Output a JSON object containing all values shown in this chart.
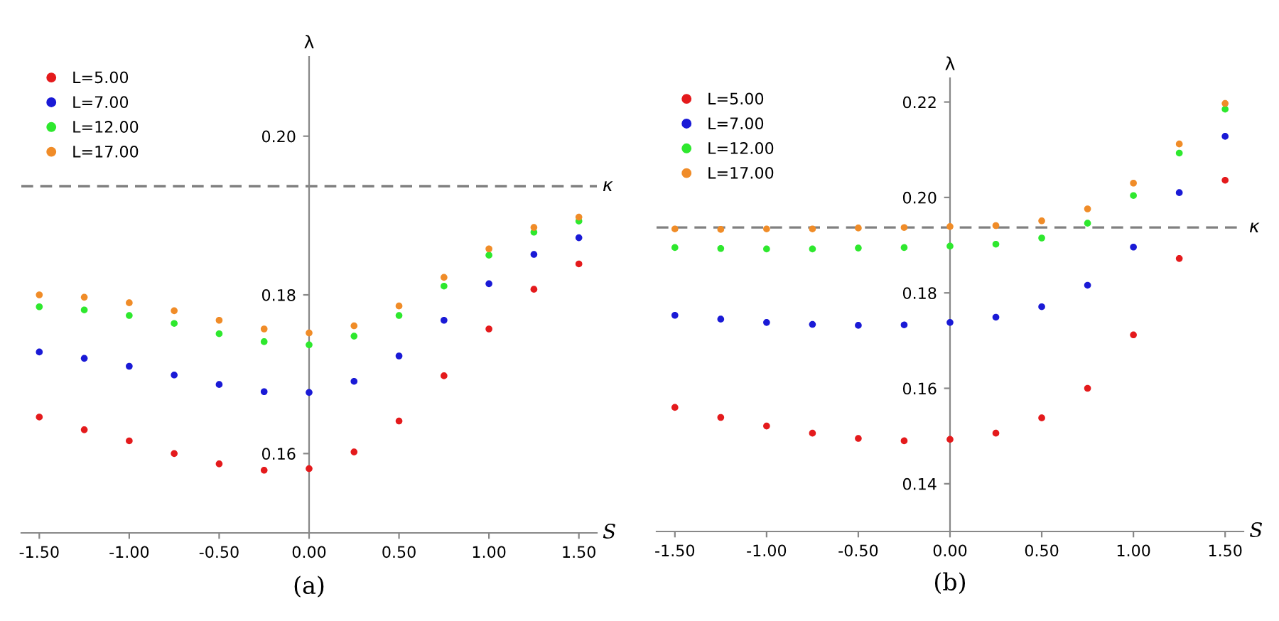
{
  "chart_data": [
    {
      "type": "scatter",
      "title": "(a)",
      "xlabel": "S",
      "ylabel": "λ",
      "legend": "top left",
      "grid": false,
      "marker": "circle",
      "x": [
        -1.5,
        -1.25,
        -1.0,
        -0.75,
        -0.5,
        -0.25,
        0.0,
        0.25,
        0.5,
        0.75,
        1.0,
        1.25,
        1.5
      ],
      "xlim": [
        -1.6,
        1.6
      ],
      "ylim": [
        0.15,
        0.21
      ],
      "xticks": [
        {
          "value": -1.5,
          "label": "-1.50"
        },
        {
          "value": -1.0,
          "label": "-1.00"
        },
        {
          "value": -0.5,
          "label": "-0.50"
        },
        {
          "value": 0.0,
          "label": "0.00"
        },
        {
          "value": 0.5,
          "label": "0.50"
        },
        {
          "value": 1.0,
          "label": "1.00"
        },
        {
          "value": 1.5,
          "label": "1.50"
        }
      ],
      "yticks": [
        {
          "value": 0.16,
          "label": "0.16"
        },
        {
          "value": 0.18,
          "label": "0.18"
        },
        {
          "value": 0.2,
          "label": "0.20"
        }
      ],
      "ref_lines": [
        {
          "axis": "y",
          "value": 0.1937,
          "label": "κ",
          "color": "#808080",
          "line_style": "dashed"
        }
      ],
      "series": [
        {
          "name": "L=5.00",
          "color": "#e41a1c",
          "values": [
            0.1646,
            0.163,
            0.1616,
            0.16,
            0.1587,
            0.1579,
            0.1581,
            0.1602,
            0.1641,
            0.1698,
            0.1757,
            0.1807,
            0.1839
          ]
        },
        {
          "name": "L=7.00",
          "color": "#1a1ad6",
          "values": [
            0.1728,
            0.172,
            0.171,
            0.1699,
            0.1687,
            0.1678,
            0.1677,
            0.1691,
            0.1723,
            0.1768,
            0.1814,
            0.1851,
            0.1872
          ]
        },
        {
          "name": "L=12.00",
          "color": "#2ee82e",
          "values": [
            0.1785,
            0.1781,
            0.1774,
            0.1764,
            0.1751,
            0.1741,
            0.1737,
            0.1748,
            0.1774,
            0.1811,
            0.185,
            0.1879,
            0.1893
          ]
        },
        {
          "name": "L=17.00",
          "color": "#f08c28",
          "values": [
            0.18,
            0.1797,
            0.179,
            0.178,
            0.1768,
            0.1757,
            0.1752,
            0.1761,
            0.1786,
            0.1822,
            0.1858,
            0.1885,
            0.1898
          ]
        }
      ]
    },
    {
      "type": "scatter",
      "title": "(b)",
      "xlabel": "S",
      "ylabel": "λ",
      "legend": "top left",
      "grid": false,
      "marker": "circle",
      "x": [
        -1.5,
        -1.25,
        -1.0,
        -0.75,
        -0.5,
        -0.25,
        0.0,
        0.25,
        0.5,
        0.75,
        1.0,
        1.25,
        1.5
      ],
      "xlim": [
        -1.6,
        1.6
      ],
      "ylim": [
        0.13,
        0.225
      ],
      "xticks": [
        {
          "value": -1.5,
          "label": "-1.50"
        },
        {
          "value": -1.0,
          "label": "-1.00"
        },
        {
          "value": -0.5,
          "label": "-0.50"
        },
        {
          "value": 0.0,
          "label": "0.00"
        },
        {
          "value": 0.5,
          "label": "0.50"
        },
        {
          "value": 1.0,
          "label": "1.00"
        },
        {
          "value": 1.5,
          "label": "1.50"
        }
      ],
      "yticks": [
        {
          "value": 0.14,
          "label": "0.14"
        },
        {
          "value": 0.16,
          "label": "0.16"
        },
        {
          "value": 0.18,
          "label": "0.18"
        },
        {
          "value": 0.2,
          "label": "0.20"
        },
        {
          "value": 0.22,
          "label": "0.22"
        }
      ],
      "ref_lines": [
        {
          "axis": "y",
          "value": 0.1937,
          "label": "κ",
          "color": "#808080",
          "line_style": "dashed"
        }
      ],
      "series": [
        {
          "name": "L=5.00",
          "color": "#e41a1c",
          "values": [
            0.156,
            0.1539,
            0.1521,
            0.1506,
            0.1495,
            0.149,
            0.1493,
            0.1506,
            0.1538,
            0.16,
            0.1712,
            0.1872,
            0.2036
          ]
        },
        {
          "name": "L=7.00",
          "color": "#1a1ad6",
          "values": [
            0.1753,
            0.1745,
            0.1738,
            0.1734,
            0.1732,
            0.1733,
            0.1738,
            0.1749,
            0.1771,
            0.1816,
            0.1896,
            0.201,
            0.2128
          ]
        },
        {
          "name": "L=12.00",
          "color": "#2ee82e",
          "values": [
            0.1895,
            0.1893,
            0.1892,
            0.1892,
            0.1894,
            0.1895,
            0.1898,
            0.1902,
            0.1915,
            0.1946,
            0.2004,
            0.2093,
            0.2185
          ]
        },
        {
          "name": "L=17.00",
          "color": "#f08c28",
          "values": [
            0.1934,
            0.1933,
            0.1934,
            0.1934,
            0.1936,
            0.1937,
            0.1939,
            0.1941,
            0.1951,
            0.1976,
            0.203,
            0.2112,
            0.2197
          ]
        }
      ]
    }
  ]
}
